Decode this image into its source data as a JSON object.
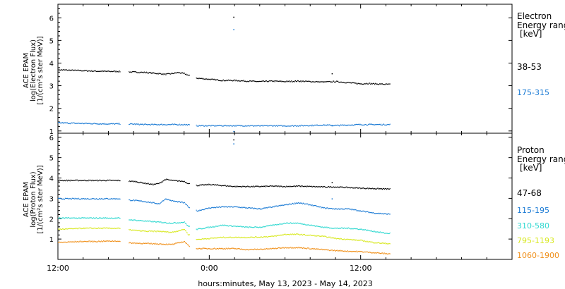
{
  "chart_data": [
    {
      "type": "scatter",
      "ylabel_lines": [
        "ACE EPAM",
        "log(Electron Flux)",
        "[1/(cm²s ster MeV)]"
      ],
      "yticks": [
        "1",
        "2",
        "3",
        "4",
        "5",
        "6"
      ],
      "ylim": [
        0.9,
        6.6
      ],
      "legend_title_lines": [
        "Electron",
        "Energy range",
        "[keV]"
      ],
      "series": [
        {
          "name": "38-53",
          "color": "#000000",
          "points": [
            [
              0.0,
              3.72
            ],
            [
              1.0,
              3.7
            ],
            [
              2.0,
              3.68
            ],
            [
              3.0,
              3.66
            ],
            [
              4.0,
              3.65
            ],
            [
              4.8,
              3.65
            ],
            [
              5.0,
              3.64
            ],
            [
              6.0,
              3.62
            ],
            [
              7.0,
              3.6
            ],
            [
              8.0,
              3.55
            ],
            [
              8.5,
              3.52
            ],
            [
              9.0,
              3.55
            ],
            [
              9.5,
              3.6
            ],
            [
              10.0,
              3.55
            ],
            [
              10.3,
              3.48
            ],
            [
              11.0,
              3.35
            ],
            [
              12.0,
              3.3
            ],
            [
              13.0,
              3.25
            ],
            [
              14.0,
              3.25
            ],
            [
              15.0,
              3.22
            ],
            [
              16.0,
              3.2
            ],
            [
              17.0,
              3.22
            ],
            [
              18.0,
              3.2
            ],
            [
              19.0,
              3.22
            ],
            [
              20.0,
              3.2
            ],
            [
              21.0,
              3.18
            ],
            [
              22.0,
              3.2
            ],
            [
              23.0,
              3.15
            ],
            [
              24.0,
              3.1
            ],
            [
              24.5,
              3.12
            ],
            [
              25.0,
              3.1
            ],
            [
              26.0,
              3.08
            ]
          ],
          "gaps": [
            [
              4.9,
              5.6
            ],
            [
              10.4,
              10.9
            ]
          ],
          "outliers": [
            [
              13.9,
              6.05
            ],
            [
              21.7,
              3.55
            ]
          ]
        },
        {
          "name": "175-315",
          "color": "#1a7ad4",
          "points": [
            [
              0.0,
              1.38
            ],
            [
              1.0,
              1.36
            ],
            [
              2.0,
              1.35
            ],
            [
              3.0,
              1.34
            ],
            [
              4.0,
              1.33
            ],
            [
              4.8,
              1.33
            ],
            [
              5.0,
              1.33
            ],
            [
              6.0,
              1.32
            ],
            [
              7.0,
              1.3
            ],
            [
              8.0,
              1.3
            ],
            [
              9.0,
              1.3
            ],
            [
              10.0,
              1.3
            ],
            [
              11.0,
              1.25
            ],
            [
              12.0,
              1.25
            ],
            [
              13.0,
              1.25
            ],
            [
              14.0,
              1.25
            ],
            [
              15.0,
              1.25
            ],
            [
              16.0,
              1.24
            ],
            [
              17.0,
              1.25
            ],
            [
              18.0,
              1.24
            ],
            [
              19.0,
              1.25
            ],
            [
              20.0,
              1.26
            ],
            [
              21.0,
              1.28
            ],
            [
              22.0,
              1.26
            ],
            [
              23.0,
              1.28
            ],
            [
              24.0,
              1.3
            ],
            [
              25.0,
              1.3
            ],
            [
              26.0,
              1.3
            ]
          ],
          "gaps": [
            [
              4.9,
              5.6
            ],
            [
              10.4,
              10.9
            ]
          ],
          "outliers": [
            [
              13.9,
              5.5
            ],
            [
              13.9,
              1.0
            ],
            [
              21.7,
              1.25
            ]
          ]
        }
      ]
    },
    {
      "type": "scatter",
      "ylabel_lines": [
        "ACE EPAM",
        "log(Proton Flux)",
        "[1/(cm²s ster MeV)]"
      ],
      "yticks": [
        "1",
        "2",
        "3",
        "4",
        "5",
        "6"
      ],
      "ylim": [
        0.0,
        6.2
      ],
      "legend_title_lines": [
        "Proton",
        "Energy range",
        "[keV]"
      ],
      "series": [
        {
          "name": "47-68",
          "color": "#000000",
          "points": [
            [
              0.0,
              3.9
            ],
            [
              1.0,
              3.9
            ],
            [
              2.0,
              3.9
            ],
            [
              3.0,
              3.9
            ],
            [
              4.0,
              3.9
            ],
            [
              4.8,
              3.9
            ],
            [
              5.0,
              3.88
            ],
            [
              6.0,
              3.85
            ],
            [
              7.0,
              3.75
            ],
            [
              7.5,
              3.7
            ],
            [
              8.0,
              3.75
            ],
            [
              8.5,
              3.95
            ],
            [
              9.0,
              3.9
            ],
            [
              10.0,
              3.85
            ],
            [
              10.3,
              3.75
            ],
            [
              11.0,
              3.65
            ],
            [
              12.0,
              3.7
            ],
            [
              13.0,
              3.65
            ],
            [
              14.0,
              3.6
            ],
            [
              15.0,
              3.6
            ],
            [
              16.0,
              3.6
            ],
            [
              17.0,
              3.62
            ],
            [
              18.0,
              3.6
            ],
            [
              19.0,
              3.62
            ],
            [
              20.0,
              3.6
            ],
            [
              21.0,
              3.58
            ],
            [
              22.0,
              3.58
            ],
            [
              23.0,
              3.55
            ],
            [
              24.0,
              3.52
            ],
            [
              25.0,
              3.5
            ],
            [
              26.0,
              3.48
            ]
          ],
          "gaps": [
            [
              4.9,
              5.6
            ],
            [
              10.4,
              10.9
            ]
          ],
          "outliers": [
            [
              13.9,
              5.9
            ],
            [
              21.7,
              3.8
            ]
          ]
        },
        {
          "name": "115-195",
          "color": "#1a7ad4",
          "points": [
            [
              0.0,
              3.0
            ],
            [
              1.0,
              3.0
            ],
            [
              2.0,
              3.0
            ],
            [
              3.0,
              3.0
            ],
            [
              4.0,
              3.0
            ],
            [
              4.8,
              3.0
            ],
            [
              5.0,
              2.95
            ],
            [
              6.0,
              2.92
            ],
            [
              7.0,
              2.85
            ],
            [
              7.5,
              2.8
            ],
            [
              8.0,
              2.75
            ],
            [
              8.5,
              3.0
            ],
            [
              9.0,
              2.9
            ],
            [
              10.0,
              2.8
            ],
            [
              10.3,
              2.6
            ],
            [
              11.0,
              2.4
            ],
            [
              12.0,
              2.55
            ],
            [
              13.0,
              2.6
            ],
            [
              14.0,
              2.6
            ],
            [
              15.0,
              2.55
            ],
            [
              16.0,
              2.5
            ],
            [
              17.0,
              2.6
            ],
            [
              18.0,
              2.7
            ],
            [
              19.0,
              2.8
            ],
            [
              20.0,
              2.7
            ],
            [
              21.0,
              2.55
            ],
            [
              22.0,
              2.5
            ],
            [
              23.0,
              2.5
            ],
            [
              24.0,
              2.4
            ],
            [
              25.0,
              2.3
            ],
            [
              26.0,
              2.25
            ]
          ],
          "gaps": [
            [
              4.9,
              5.6
            ],
            [
              10.4,
              10.9
            ]
          ],
          "outliers": [
            [
              13.9,
              5.7
            ],
            [
              21.7,
              3.0
            ]
          ]
        },
        {
          "name": "310-580",
          "color": "#2fd8d0",
          "points": [
            [
              0.0,
              2.05
            ],
            [
              1.0,
              2.05
            ],
            [
              2.0,
              2.05
            ],
            [
              3.0,
              2.05
            ],
            [
              4.0,
              2.05
            ],
            [
              4.8,
              2.05
            ],
            [
              5.0,
              2.0
            ],
            [
              6.0,
              1.95
            ],
            [
              7.0,
              1.9
            ],
            [
              8.0,
              1.85
            ],
            [
              9.0,
              1.8
            ],
            [
              10.0,
              1.85
            ],
            [
              10.3,
              1.65
            ],
            [
              11.0,
              1.5
            ],
            [
              12.0,
              1.6
            ],
            [
              13.0,
              1.7
            ],
            [
              14.0,
              1.65
            ],
            [
              15.0,
              1.6
            ],
            [
              16.0,
              1.6
            ],
            [
              17.0,
              1.7
            ],
            [
              18.0,
              1.8
            ],
            [
              19.0,
              1.8
            ],
            [
              20.0,
              1.7
            ],
            [
              21.0,
              1.6
            ],
            [
              22.0,
              1.55
            ],
            [
              23.0,
              1.55
            ],
            [
              24.0,
              1.5
            ],
            [
              25.0,
              1.4
            ],
            [
              26.0,
              1.3
            ]
          ],
          "gaps": [
            [
              4.9,
              5.6
            ],
            [
              10.4,
              10.9
            ]
          ],
          "outliers": []
        },
        {
          "name": "795-1193",
          "color": "#d8e820",
          "points": [
            [
              0.0,
              1.5
            ],
            [
              1.0,
              1.52
            ],
            [
              2.0,
              1.55
            ],
            [
              3.0,
              1.55
            ],
            [
              4.0,
              1.55
            ],
            [
              4.8,
              1.55
            ],
            [
              5.0,
              1.5
            ],
            [
              6.0,
              1.45
            ],
            [
              7.0,
              1.4
            ],
            [
              8.0,
              1.4
            ],
            [
              9.0,
              1.35
            ],
            [
              10.0,
              1.5
            ],
            [
              10.3,
              1.25
            ],
            [
              11.0,
              1.0
            ],
            [
              12.0,
              1.05
            ],
            [
              13.0,
              1.1
            ],
            [
              14.0,
              1.1
            ],
            [
              15.0,
              1.1
            ],
            [
              16.0,
              1.12
            ],
            [
              17.0,
              1.15
            ],
            [
              18.0,
              1.25
            ],
            [
              19.0,
              1.25
            ],
            [
              20.0,
              1.2
            ],
            [
              21.0,
              1.15
            ],
            [
              22.0,
              1.05
            ],
            [
              23.0,
              1.0
            ],
            [
              24.0,
              0.95
            ],
            [
              25.0,
              0.85
            ],
            [
              26.0,
              0.8
            ]
          ],
          "gaps": [
            [
              4.9,
              5.6
            ],
            [
              10.4,
              10.9
            ]
          ],
          "outliers": []
        },
        {
          "name": "1060-1900",
          "color": "#f0901a",
          "points": [
            [
              0.0,
              0.85
            ],
            [
              1.0,
              0.88
            ],
            [
              2.0,
              0.9
            ],
            [
              3.0,
              0.9
            ],
            [
              4.0,
              0.92
            ],
            [
              4.8,
              0.92
            ],
            [
              5.0,
              0.85
            ],
            [
              6.0,
              0.82
            ],
            [
              7.0,
              0.8
            ],
            [
              8.0,
              0.78
            ],
            [
              9.0,
              0.75
            ],
            [
              10.0,
              0.9
            ],
            [
              10.3,
              0.7
            ],
            [
              11.0,
              0.55
            ],
            [
              12.0,
              0.55
            ],
            [
              13.0,
              0.55
            ],
            [
              14.0,
              0.55
            ],
            [
              15.0,
              0.5
            ],
            [
              16.0,
              0.52
            ],
            [
              17.0,
              0.55
            ],
            [
              18.0,
              0.6
            ],
            [
              19.0,
              0.6
            ],
            [
              20.0,
              0.55
            ],
            [
              21.0,
              0.5
            ],
            [
              22.0,
              0.45
            ],
            [
              23.0,
              0.42
            ],
            [
              24.0,
              0.4
            ],
            [
              25.0,
              0.35
            ],
            [
              26.0,
              0.3
            ]
          ],
          "gaps": [
            [
              4.9,
              5.6
            ],
            [
              10.4,
              10.9
            ]
          ],
          "outliers": []
        }
      ]
    }
  ],
  "x_axis": {
    "label": "hours:minutes, May 13, 2023 - May 14, 2023",
    "ticks": [
      {
        "hours": 0,
        "label": "12:00"
      },
      {
        "hours": 12,
        "label": "0:00"
      },
      {
        "hours": 24,
        "label": "12:00"
      }
    ],
    "xlim_hours": [
      0,
      36
    ]
  }
}
